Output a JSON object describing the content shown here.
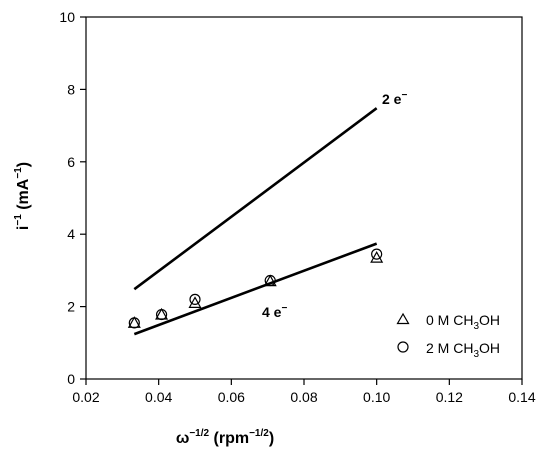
{
  "chart_data": {
    "type": "scatter",
    "xlabel": {
      "base": "ω",
      "base_sup": "−1/2",
      "unit_open": " (rpm",
      "unit_sup": "−1/2",
      "unit_close": ")"
    },
    "ylabel": {
      "base": "i",
      "base_sup": "−1",
      "unit_open": " (mA",
      "unit_sup": "−1",
      "unit_close": ")"
    },
    "xlim": [
      0.02,
      0.14
    ],
    "ylim": [
      0,
      10
    ],
    "x_ticks": [
      "0.02",
      "0.04",
      "0.06",
      "0.08",
      "0.10",
      "0.12",
      "0.14"
    ],
    "y_ticks": [
      "0",
      "2",
      "4",
      "6",
      "8",
      "10"
    ],
    "grid": false,
    "legend_position": "bottom-right",
    "series": [
      {
        "name": {
          "pre": "0 M CH",
          "sub": "3",
          "post": "OH"
        },
        "marker": "triangle",
        "x": [
          0.0333,
          0.0408,
          0.05,
          0.0707,
          0.1
        ],
        "y": [
          1.55,
          1.78,
          2.1,
          2.7,
          3.35
        ]
      },
      {
        "name": {
          "pre": "2 M CH",
          "sub": "3",
          "post": "OH"
        },
        "marker": "circle",
        "x": [
          0.0333,
          0.0408,
          0.05,
          0.0707,
          0.1
        ],
        "y": [
          1.55,
          1.78,
          2.2,
          2.72,
          3.45
        ]
      }
    ],
    "reference_lines": [
      {
        "label": {
          "base": "2 e",
          "sup": "−"
        },
        "x": [
          0.0333,
          0.1
        ],
        "y": [
          2.48,
          7.48
        ]
      },
      {
        "label": {
          "base": "4 e",
          "sup": "−"
        },
        "x": [
          0.0333,
          0.1
        ],
        "y": [
          1.24,
          3.74
        ]
      }
    ]
  }
}
